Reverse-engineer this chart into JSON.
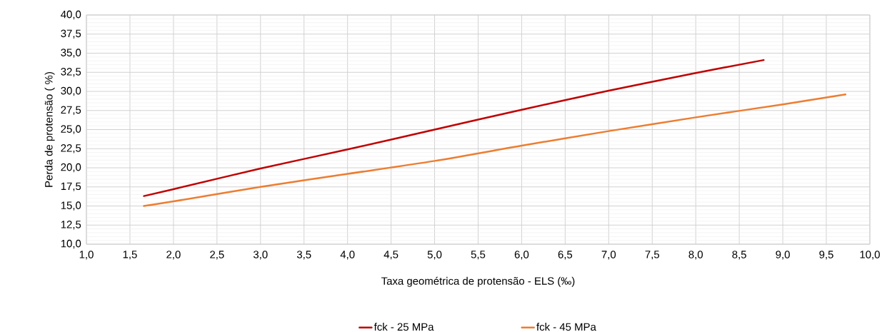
{
  "chart_data": {
    "type": "line",
    "xlabel": "Taxa geométrica de protensão - ELS (‰)",
    "ylabel": "Perda de protensão ( %)",
    "series": [
      {
        "name": "fck - 25 MPa",
        "color": "#c00000",
        "x": [
          1.66,
          2.0,
          3.0,
          4.0,
          5.0,
          6.0,
          7.0,
          8.0,
          8.78
        ],
        "values": [
          16.3,
          17.2,
          19.9,
          22.4,
          25.0,
          27.6,
          30.1,
          32.4,
          34.1
        ]
      },
      {
        "name": "fck - 45 MPa",
        "color": "#ed7d31",
        "x": [
          1.66,
          2.0,
          3.0,
          4.0,
          5.0,
          6.0,
          7.0,
          8.0,
          9.0,
          9.72
        ],
        "values": [
          15.0,
          15.6,
          17.5,
          19.2,
          20.9,
          22.9,
          24.8,
          26.6,
          28.3,
          29.6
        ]
      }
    ],
    "xlim": [
      1.0,
      10.0
    ],
    "xticks": [
      {
        "value": 1.0,
        "label": "1,0"
      },
      {
        "value": 1.5,
        "label": "1,5"
      },
      {
        "value": 2.0,
        "label": "2,0"
      },
      {
        "value": 2.5,
        "label": "2,5"
      },
      {
        "value": 3.0,
        "label": "3,0"
      },
      {
        "value": 3.5,
        "label": "3,5"
      },
      {
        "value": 4.0,
        "label": "4,0"
      },
      {
        "value": 4.5,
        "label": "4,5"
      },
      {
        "value": 5.0,
        "label": "5,0"
      },
      {
        "value": 5.5,
        "label": "5,5"
      },
      {
        "value": 6.0,
        "label": "6,0"
      },
      {
        "value": 6.5,
        "label": "6,5"
      },
      {
        "value": 7.0,
        "label": "7,0"
      },
      {
        "value": 7.5,
        "label": "7,5"
      },
      {
        "value": 8.0,
        "label": "8,0"
      },
      {
        "value": 8.5,
        "label": "8,5"
      },
      {
        "value": 9.0,
        "label": "9,0"
      },
      {
        "value": 9.5,
        "label": "9,5"
      },
      {
        "value": 10.0,
        "label": "10,0"
      }
    ],
    "ylim": [
      10.0,
      40.0
    ],
    "yticks": [
      {
        "value": 10.0,
        "label": "10,0"
      },
      {
        "value": 12.5,
        "label": "12,5"
      },
      {
        "value": 15.0,
        "label": "15,0"
      },
      {
        "value": 17.5,
        "label": "17,5"
      },
      {
        "value": 20.0,
        "label": "20,0"
      },
      {
        "value": 22.5,
        "label": "22,5"
      },
      {
        "value": 25.0,
        "label": "25,0"
      },
      {
        "value": 27.5,
        "label": "27,5"
      },
      {
        "value": 30.0,
        "label": "30,0"
      },
      {
        "value": 32.5,
        "label": "32,5"
      },
      {
        "value": 35.0,
        "label": "35,0"
      },
      {
        "value": 37.5,
        "label": "37,5"
      },
      {
        "value": 40.0,
        "label": "40,0"
      }
    ],
    "grid": true,
    "legend": "bottom",
    "marker": "none",
    "line_style": "solid"
  }
}
